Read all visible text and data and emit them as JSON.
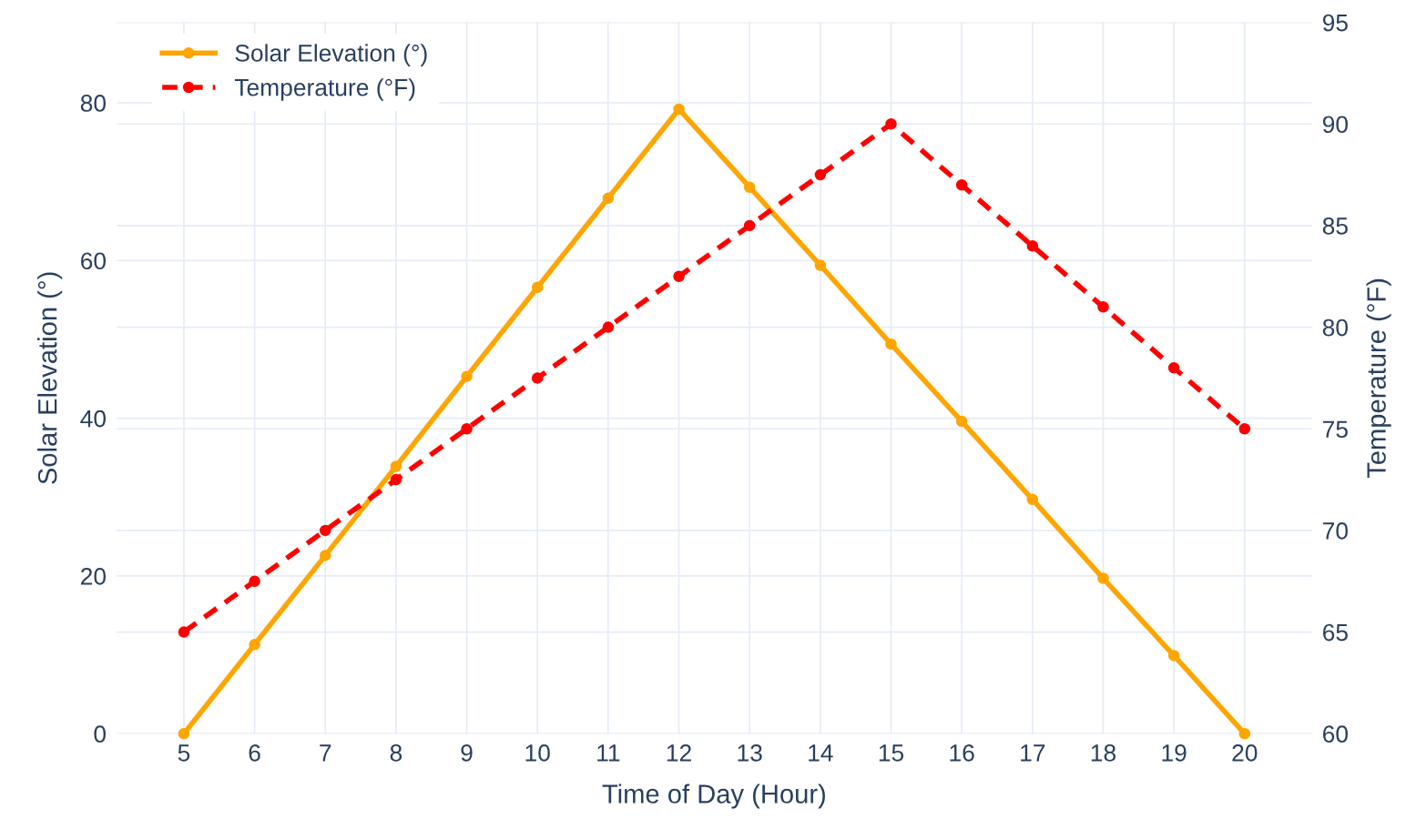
{
  "chart_data": {
    "type": "line",
    "xlabel": "Time of Day (Hour)",
    "ylabel": "Solar Elevation (°)",
    "y2label": "Temperature (°F)",
    "x": [
      5,
      6,
      7,
      8,
      9,
      10,
      11,
      12,
      13,
      14,
      15,
      16,
      17,
      18,
      19,
      20
    ],
    "series": [
      {
        "name": "Solar Elevation (°)",
        "color": "#ffa500",
        "line_style": "solid",
        "values": [
          0,
          11.3,
          22.6,
          33.9,
          45.3,
          56.6,
          67.9,
          79.2,
          69.3,
          59.4,
          49.4,
          39.6,
          29.7,
          19.7,
          9.9,
          0
        ]
      },
      {
        "name": "Temperature (°F)",
        "color": "#ff0000",
        "line_style": "dashed",
        "axis": "y2",
        "values": [
          65,
          67.5,
          70,
          72.5,
          75,
          77.5,
          80,
          82.5,
          85,
          87.5,
          90,
          87,
          84,
          81,
          78,
          75
        ]
      }
    ],
    "xlim": [
      4.05,
      20.95
    ],
    "xticks": [
      5,
      6,
      7,
      8,
      9,
      10,
      11,
      12,
      13,
      14,
      15,
      16,
      17,
      18,
      19,
      20
    ],
    "ylim": [
      0,
      90.2
    ],
    "yticks": [
      0,
      20,
      40,
      60,
      80
    ],
    "y2lim": [
      60,
      95
    ],
    "y2ticks": [
      60,
      65,
      70,
      75,
      80,
      85,
      90,
      95
    ],
    "grid": true,
    "legend": "top left",
    "marker": "circle"
  }
}
